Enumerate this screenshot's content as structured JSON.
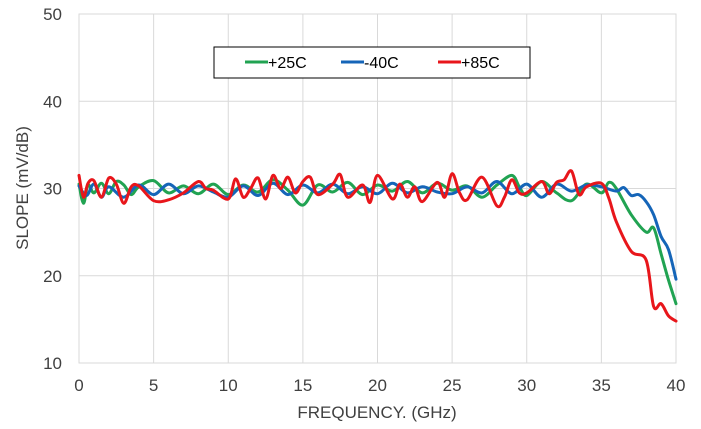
{
  "chart_data": {
    "type": "line",
    "xlabel": "FREQUENCY. (GHz)",
    "ylabel": "SLOPE (mV/dB)",
    "xlim": [
      0,
      40
    ],
    "ylim": [
      10,
      50
    ],
    "xticks": [
      "0",
      "5",
      "10",
      "15",
      "20",
      "25",
      "30",
      "35",
      "40"
    ],
    "yticks": [
      "10",
      "20",
      "30",
      "40",
      "50"
    ],
    "grid": true,
    "legend_position": "top-center",
    "series": [
      {
        "name": "+25C",
        "color": "#21a352",
        "x": [
          0,
          0.3,
          0.6,
          1,
          1.5,
          2,
          2.5,
          3,
          3.5,
          4,
          5,
          6,
          7,
          8,
          9,
          10,
          11,
          12,
          13,
          14,
          15,
          16,
          17,
          18,
          19,
          20,
          21,
          22,
          23,
          24,
          25,
          26,
          27,
          28,
          29,
          29.5,
          30,
          31,
          32,
          33,
          34,
          35,
          35.5,
          36,
          37,
          38,
          38.5,
          39,
          39.5,
          40
        ],
        "values": [
          30.5,
          28.3,
          30.4,
          29.5,
          30.6,
          29.4,
          30.8,
          30.4,
          29.3,
          30.2,
          30.9,
          29.5,
          30.3,
          29.4,
          30.5,
          29.3,
          30.4,
          29.6,
          31.0,
          29.8,
          28.1,
          30.4,
          29.6,
          30.7,
          29.3,
          30.4,
          29.7,
          30.8,
          29.5,
          30.6,
          29.8,
          30.3,
          29.0,
          30.4,
          31.5,
          30.2,
          29.2,
          30.8,
          29.5,
          28.6,
          30.5,
          29.5,
          30.7,
          30.0,
          27.0,
          25.0,
          25.5,
          22.5,
          19.5,
          16.8
        ]
      },
      {
        "name": "-40C",
        "color": "#1565b8",
        "x": [
          0,
          0.5,
          1,
          1.5,
          2,
          3,
          4,
          5,
          6,
          7,
          8,
          9,
          10,
          11,
          12,
          13,
          14,
          15,
          16,
          17,
          18,
          19,
          20,
          21,
          22,
          23,
          24,
          25,
          26,
          27,
          28,
          29,
          30,
          31,
          32,
          33,
          34,
          35,
          36,
          36.5,
          37,
          37.5,
          38,
          38.5,
          39,
          39.5,
          40
        ],
        "values": [
          30.3,
          29.2,
          30.5,
          29.0,
          30.2,
          29.0,
          30.4,
          29.3,
          30.5,
          29.4,
          30.3,
          29.6,
          29.0,
          30.3,
          29.2,
          30.6,
          29.3,
          30.4,
          29.5,
          30.5,
          29.4,
          30.2,
          29.4,
          30.6,
          29.5,
          30.2,
          29.6,
          29.4,
          30.2,
          29.5,
          30.8,
          29.4,
          30.5,
          29.0,
          30.5,
          29.7,
          30.4,
          30.2,
          29.7,
          30.1,
          29.2,
          29.3,
          28.5,
          27.0,
          24.5,
          23.0,
          19.6
        ]
      },
      {
        "name": "+85C",
        "color": "#e8161b",
        "x": [
          0,
          0.3,
          0.6,
          1,
          1.5,
          2,
          2.5,
          3,
          3.5,
          4,
          5,
          6,
          7,
          8,
          8.5,
          9,
          10,
          10.5,
          11,
          11.5,
          12,
          12.5,
          13,
          13.5,
          14,
          14.5,
          15,
          15.5,
          16,
          17,
          17.5,
          18,
          19,
          19.5,
          20,
          21,
          21.5,
          22,
          22.5,
          23,
          24,
          24.5,
          25,
          25.5,
          26,
          27,
          28,
          28.5,
          29,
          29.5,
          30,
          31,
          31.5,
          32,
          32.5,
          33,
          33.5,
          34,
          35,
          35.5,
          36,
          37,
          38,
          38.5,
          39,
          39.5,
          40
        ],
        "values": [
          31.5,
          29.0,
          30.6,
          30.9,
          29.0,
          31.2,
          30.5,
          28.3,
          30.2,
          30.3,
          28.6,
          28.7,
          29.5,
          30.8,
          30.0,
          29.8,
          28.8,
          31.1,
          29.0,
          30.0,
          31.2,
          28.8,
          31.5,
          30.0,
          31.3,
          29.5,
          30.8,
          31.3,
          29.3,
          30.5,
          31.6,
          29.0,
          30.4,
          28.4,
          31.5,
          28.8,
          30.5,
          29.0,
          30.2,
          28.5,
          30.7,
          29.0,
          31.7,
          29.5,
          28.7,
          31.3,
          28.0,
          29.0,
          31.0,
          29.5,
          29.5,
          30.8,
          29.4,
          30.7,
          31.0,
          32.0,
          29.3,
          30.2,
          30.6,
          28.9,
          26.2,
          22.8,
          21.8,
          16.5,
          16.8,
          15.4,
          14.8
        ]
      }
    ]
  }
}
